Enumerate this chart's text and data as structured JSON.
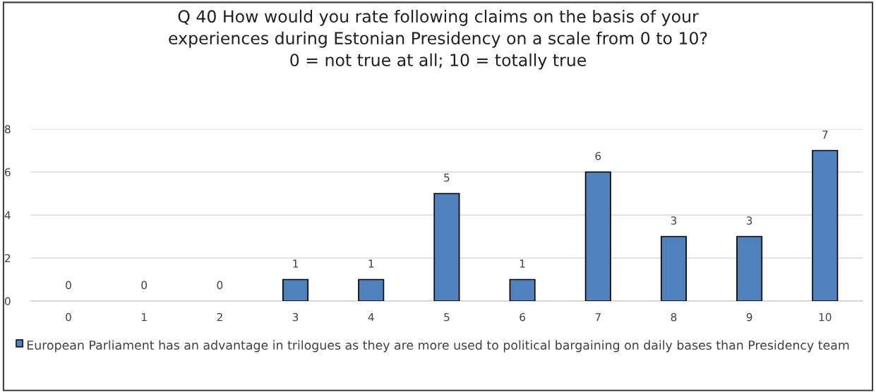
{
  "chart_data": {
    "type": "bar",
    "title": "Q 40 How would you rate following claims on the basis of your\nexperiences during Estonian Presidency on a scale from 0 to 10?\n0 = not true at all; 10 = totally true",
    "categories": [
      "0",
      "1",
      "2",
      "3",
      "4",
      "5",
      "6",
      "7",
      "8",
      "9",
      "10"
    ],
    "series": [
      {
        "name": "European Parliament has an advantage in trilogues as they are more used to political bargaining on daily bases than Presidency team",
        "color": "#4f81bd",
        "values": [
          0,
          0,
          0,
          1,
          1,
          5,
          1,
          6,
          3,
          3,
          7
        ]
      }
    ],
    "ylim": [
      0,
      8
    ],
    "yticks": [
      0,
      2,
      4,
      6,
      8
    ],
    "grid": "y",
    "data_labels": true,
    "legend": "bottom"
  }
}
